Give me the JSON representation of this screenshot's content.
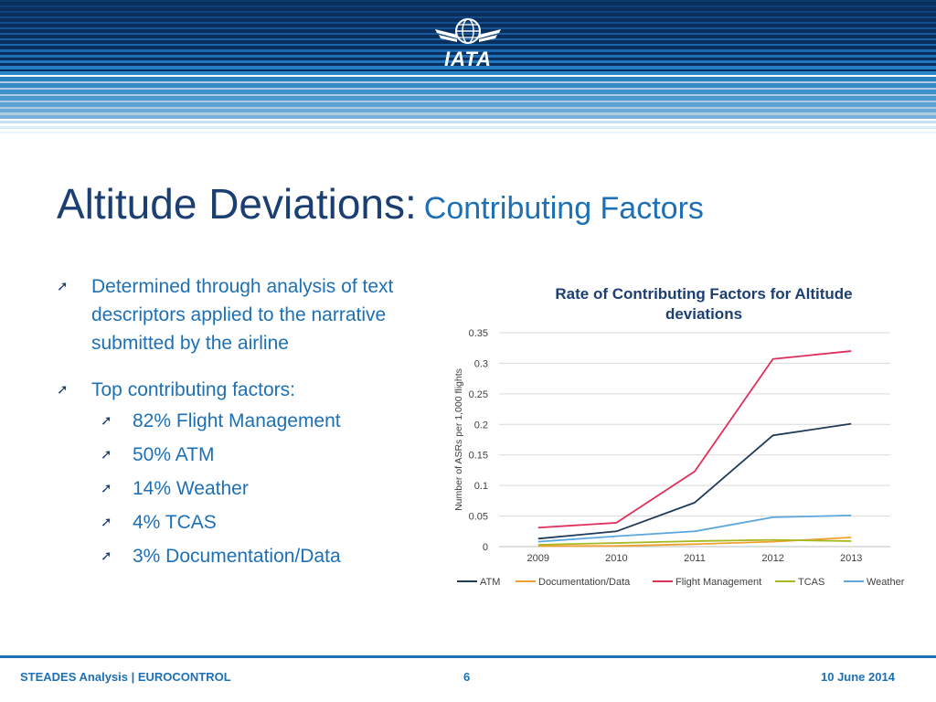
{
  "header": {
    "logo_text": "IATA"
  },
  "slide": {
    "title_main": "Altitude Deviations:",
    "title_sub": "Contributing Factors",
    "bullets": [
      "Determined through analysis of text descriptors applied to the narrative submitted by the airline",
      "Top contributing factors:"
    ],
    "sub_bullets": [
      "82% Flight Management",
      "50% ATM",
      "14% Weather",
      "4% TCAS",
      "3% Documentation/Data"
    ]
  },
  "chart_data": {
    "type": "line",
    "title": "Rate of Contributing Factors for Altitude deviations",
    "xlabel": "",
    "ylabel": "Number of ASRs per 1,000 flights",
    "categories": [
      "2009",
      "2010",
      "2011",
      "2012",
      "2013"
    ],
    "ylim": [
      0,
      0.35
    ],
    "yticks": [
      "0",
      "0.05",
      "0.1",
      "0.15",
      "0.2",
      "0.25",
      "0.3",
      "0.35"
    ],
    "grid": true,
    "legend_position": "bottom",
    "series": [
      {
        "name": "ATM",
        "color": "#1f3b57",
        "values": [
          0.013,
          0.025,
          0.072,
          0.182,
          0.201
        ]
      },
      {
        "name": "Documentation/Data",
        "color": "#f0a030",
        "values": [
          0.001,
          0.001,
          0.004,
          0.008,
          0.015
        ]
      },
      {
        "name": "Flight Management",
        "color": "#e0305a",
        "values": [
          0.031,
          0.039,
          0.123,
          0.307,
          0.32
        ]
      },
      {
        "name": "TCAS",
        "color": "#a8b820",
        "values": [
          0.003,
          0.006,
          0.009,
          0.011,
          0.009
        ]
      },
      {
        "name": "Weather",
        "color": "#5ba7dd",
        "values": [
          0.008,
          0.017,
          0.025,
          0.048,
          0.051
        ]
      }
    ]
  },
  "footer": {
    "left": "STEADES Analysis | EUROCONTROL",
    "page": "6",
    "date": "10 June 2014"
  },
  "colors": {
    "brand_dark": "#0d3866",
    "brand_blue": "#1d70b5",
    "title_dark": "#1b3f73"
  }
}
